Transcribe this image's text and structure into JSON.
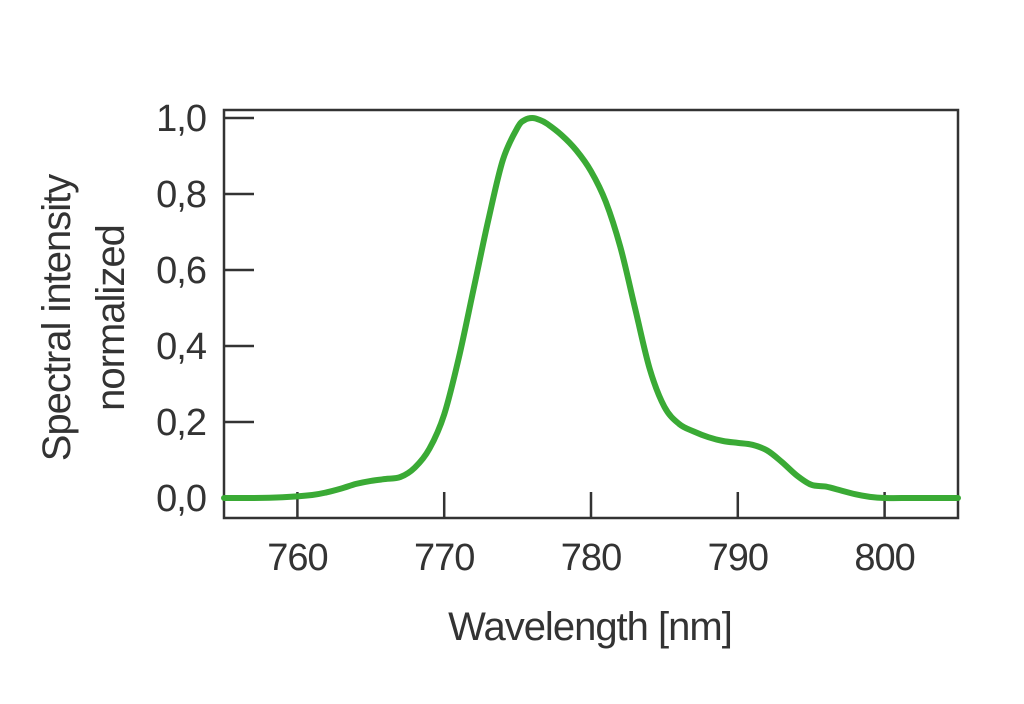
{
  "chart_data": {
    "type": "line",
    "xlabel": "Wavelength [nm]",
    "ylabel": [
      "Spectral intensity",
      "normalized"
    ],
    "xlim": [
      755,
      805
    ],
    "ylim": [
      0.0,
      1.0
    ],
    "xticks": [
      760,
      770,
      780,
      790,
      800
    ],
    "xtick_labels": [
      "760",
      "770",
      "780",
      "790",
      "800"
    ],
    "yticks": [
      0.0,
      0.2,
      0.4,
      0.6,
      0.8,
      1.0
    ],
    "ytick_labels": [
      "0,0",
      "0,2",
      "0,4",
      "0,6",
      "0,8",
      "1,0"
    ],
    "grid": false,
    "series": [
      {
        "color": "#3aaa35",
        "x": [
          755,
          757,
          759,
          761,
          762,
          763,
          764,
          765,
          766,
          767,
          768,
          769,
          770,
          771,
          772,
          773,
          774,
          775,
          775.5,
          776,
          776.5,
          777,
          778,
          779,
          780,
          781,
          782,
          783,
          784,
          785,
          786,
          787,
          788,
          789,
          790,
          791,
          792,
          793,
          794,
          795,
          796,
          797,
          798,
          799,
          800,
          802,
          805
        ],
        "y": [
          0.0,
          0.0,
          0.002,
          0.008,
          0.015,
          0.025,
          0.037,
          0.045,
          0.05,
          0.055,
          0.08,
          0.13,
          0.22,
          0.37,
          0.55,
          0.73,
          0.89,
          0.975,
          0.995,
          1.0,
          0.995,
          0.985,
          0.955,
          0.915,
          0.86,
          0.78,
          0.66,
          0.5,
          0.34,
          0.24,
          0.195,
          0.175,
          0.16,
          0.15,
          0.145,
          0.14,
          0.125,
          0.095,
          0.06,
          0.035,
          0.03,
          0.02,
          0.01,
          0.003,
          0.0,
          0.0,
          0.0
        ]
      }
    ]
  }
}
